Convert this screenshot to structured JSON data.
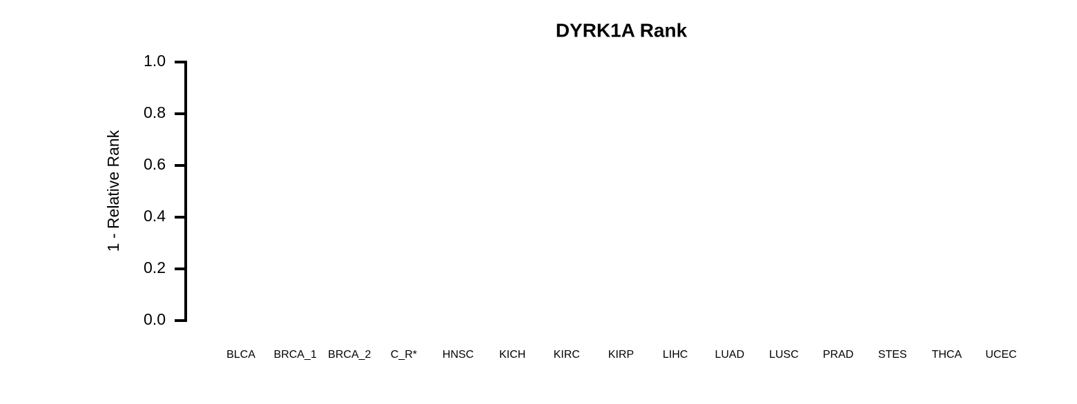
{
  "chart_data": {
    "type": "bar",
    "title": "DYRK1A Rank",
    "ylabel": "1 - Relative Rank",
    "categories": [
      "BLCA",
      "BRCA_1",
      "BRCA_2",
      "C_R*",
      "HNSC",
      "KICH",
      "KIRC",
      "KIRP",
      "LIHC",
      "LUAD",
      "LUSC",
      "PRAD",
      "STES",
      "THCA",
      "UCEC"
    ],
    "ylim": [
      0,
      1
    ],
    "yticks": [
      {
        "value": 0,
        "label": "0.0"
      },
      0.2,
      0.4,
      0.6,
      0.8,
      {
        "value": 1,
        "label": "1.0"
      }
    ]
  }
}
